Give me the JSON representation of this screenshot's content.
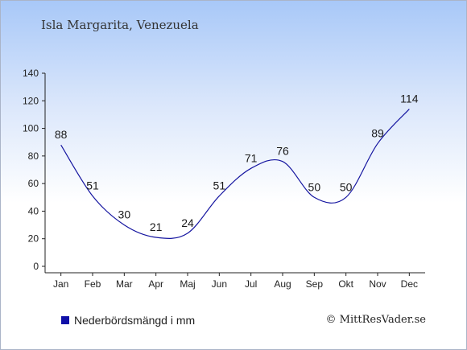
{
  "title": "Isla Margarita, Venezuela",
  "legend_label": "Nederbördsmängd i mm",
  "credit": "© MittResVader.se",
  "colors": {
    "series": "#1515a0",
    "legend_swatch": "#1010a8",
    "background_top": "#a8c8f8",
    "axis": "#222222"
  },
  "chart_data": {
    "type": "line",
    "title": "Isla Margarita, Venezuela",
    "categories": [
      "Jan",
      "Feb",
      "Mar",
      "Apr",
      "Maj",
      "Jun",
      "Jul",
      "Aug",
      "Sep",
      "Okt",
      "Nov",
      "Dec"
    ],
    "series": [
      {
        "name": "Nederbördsmängd i mm",
        "values": [
          88,
          51,
          30,
          21,
          24,
          51,
          71,
          76,
          50,
          50,
          89,
          114
        ]
      }
    ],
    "ylim": [
      0,
      140
    ],
    "yticks": [
      0,
      20,
      40,
      60,
      80,
      100,
      120,
      140
    ],
    "xlabel": "",
    "ylabel": "",
    "grid": false,
    "legend": "bottom-left",
    "smooth": true
  }
}
